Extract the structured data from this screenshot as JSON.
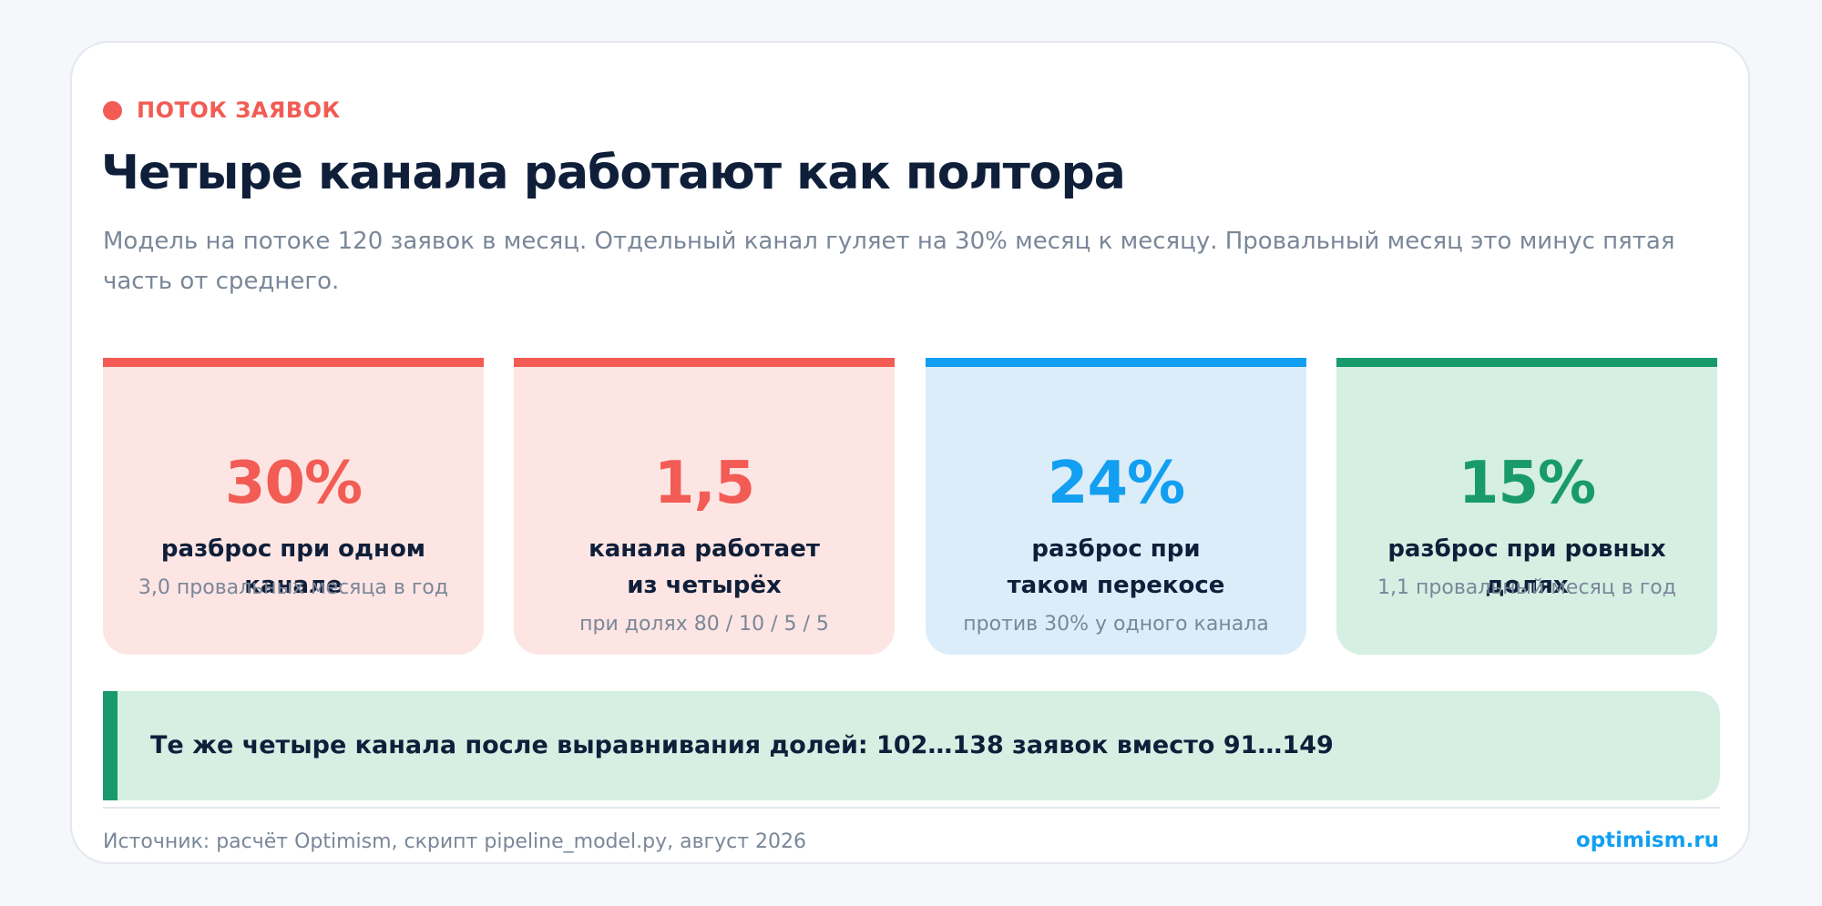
{
  "eyebrow": "ПОТОК ЗАЯВОК",
  "title": "Четыре канала работают как полтора",
  "subtitle": "Модель на потоке 120 заявок в месяц. Отдельный канал гуляет на 30% месяц к месяцу. Провальный месяц это минус пятая часть от среднего.",
  "stats": [
    {
      "value": "30%",
      "label": "разброс при одном канале",
      "note": "3,0 провальных месяца в год"
    },
    {
      "value": "1,5",
      "label": "канала работает из четырёх",
      "note": "при долях 80 / 10 / 5 / 5"
    },
    {
      "value": "24%",
      "label": "разброс при таком перекосе",
      "note": "против 30% у одного канала"
    },
    {
      "value": "15%",
      "label": "разброс при ровных долях",
      "note": "1,1 провальный месяц в год"
    }
  ],
  "callout": "Те же четыре канала после выравнивания долей: 102…138 заявок вместо 91…149",
  "footer": {
    "source": "Источник: расчёт Optimism, скрипт pipeline_model.py, август 2026",
    "brand": "optimism.ru"
  },
  "colors": {
    "coral": "#f25c54",
    "blue": "#129ff1",
    "green": "#199a6d",
    "navy": "#0f1f3a",
    "muted": "#7a8799"
  }
}
